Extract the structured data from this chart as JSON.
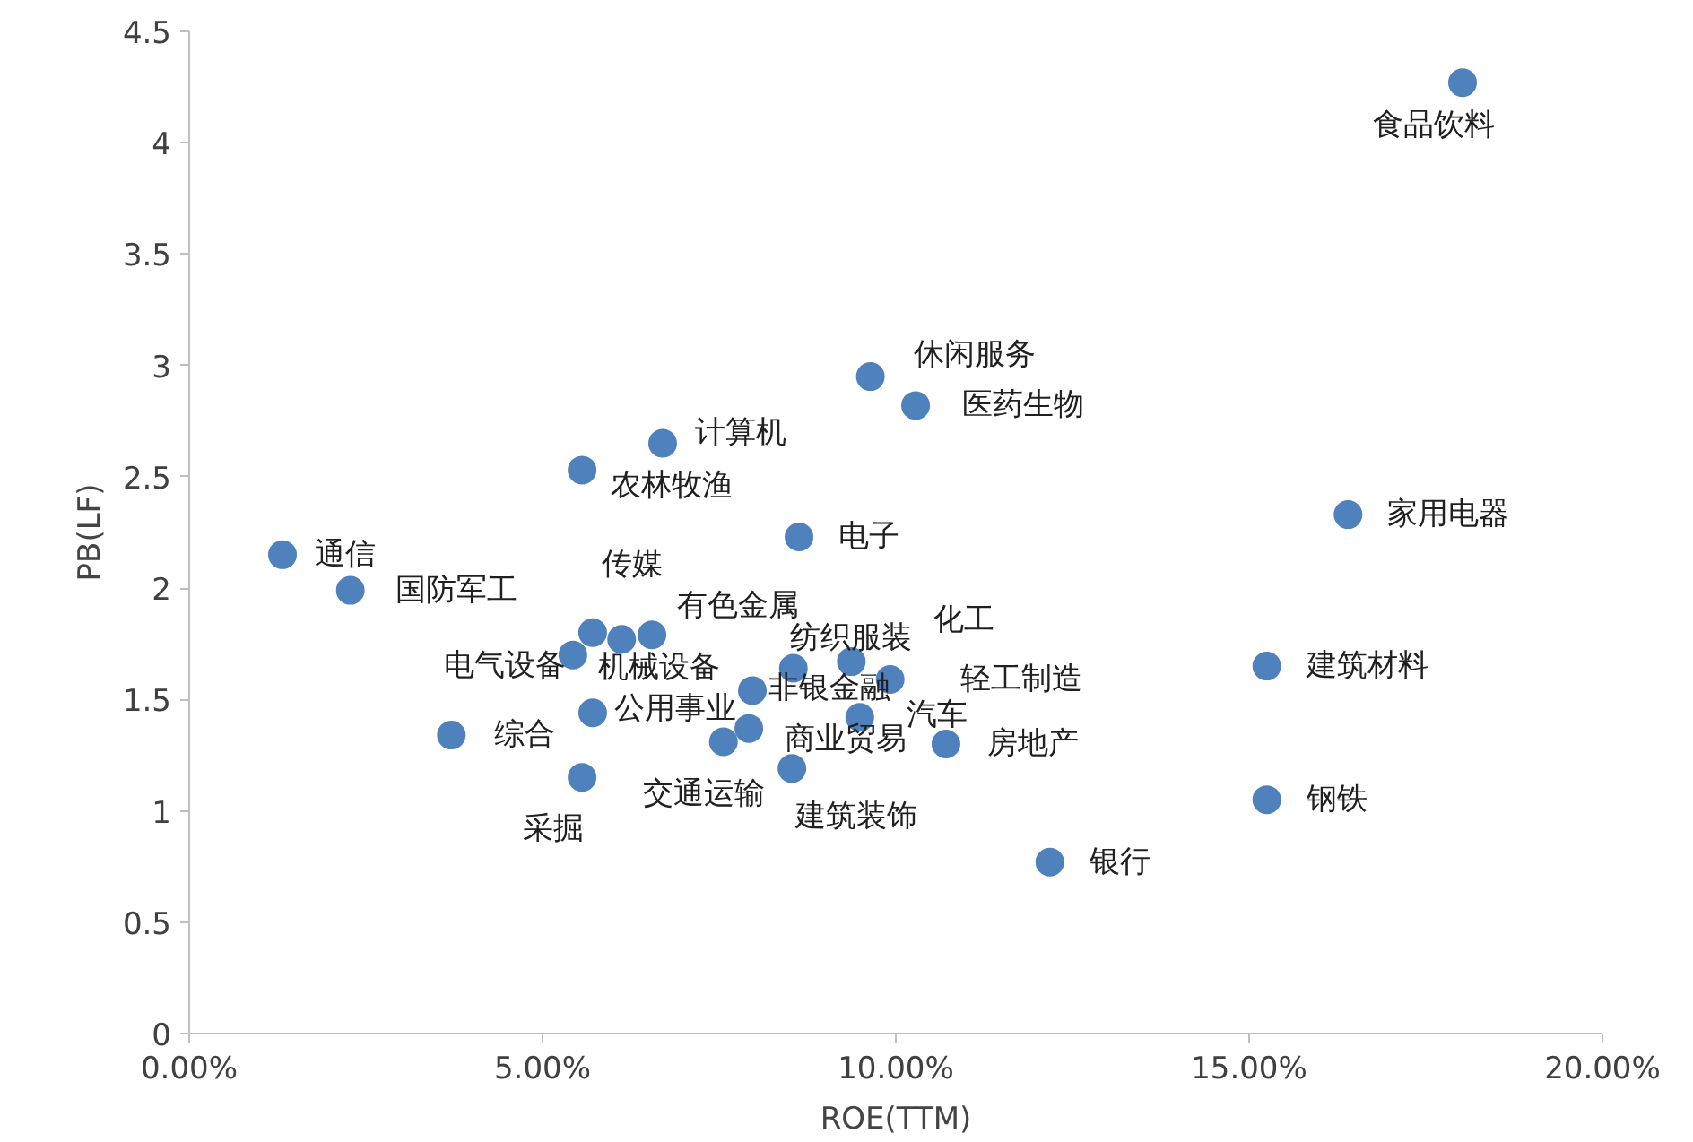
{
  "chart_data": {
    "type": "scatter",
    "xlabel": "ROE(TTM)",
    "ylabel": "PB(LF)",
    "marker": "circle",
    "xlim": [
      0,
      20
    ],
    "ylim": [
      0,
      4.5
    ],
    "xticks": [
      {
        "value": 0,
        "label": "0.00%"
      },
      {
        "value": 5,
        "label": "5.00%"
      },
      {
        "value": 10,
        "label": "10.00%"
      },
      {
        "value": 15,
        "label": "15.00%"
      },
      {
        "value": 20,
        "label": "20.00%"
      }
    ],
    "yticks": [
      0,
      0.5,
      1,
      1.5,
      2,
      2.5,
      3,
      3.5,
      4,
      4.5
    ],
    "series": [
      {
        "color": "#4f81bd",
        "x": [
          18.02,
          9.64,
          10.28,
          6.7,
          5.56,
          16.4,
          8.63,
          1.32,
          2.28,
          5.71,
          6.55,
          5.43,
          6.12,
          5.71,
          5.56,
          7.56,
          7.92,
          7.97,
          8.55,
          9.37,
          9.92,
          9.49,
          10.71,
          8.53,
          3.71,
          15.25,
          15.25,
          12.18
        ],
        "values": [
          4.27,
          2.95,
          2.82,
          2.65,
          2.53,
          2.33,
          2.23,
          2.15,
          1.99,
          1.8,
          1.79,
          1.7,
          1.77,
          1.44,
          1.15,
          1.31,
          1.37,
          1.54,
          1.64,
          1.67,
          1.59,
          1.42,
          1.3,
          1.19,
          1.34,
          1.65,
          1.05,
          0.77
        ]
      }
    ],
    "annotations": [
      {
        "text": "食品饮料",
        "x": 18.02,
        "y": 4.27
      },
      {
        "text": "休闲服务",
        "x": 9.64,
        "y": 2.95
      },
      {
        "text": "医药生物",
        "x": 10.28,
        "y": 2.82
      },
      {
        "text": "计算机",
        "x": 6.7,
        "y": 2.65
      },
      {
        "text": "农林牧渔",
        "x": 5.56,
        "y": 2.53
      },
      {
        "text": "家用电器",
        "x": 16.4,
        "y": 2.33
      },
      {
        "text": "电子",
        "x": 8.63,
        "y": 2.23
      },
      {
        "text": "通信",
        "x": 1.32,
        "y": 2.15
      },
      {
        "text": "国防军工",
        "x": 2.28,
        "y": 1.99
      },
      {
        "text": "传媒",
        "x": 5.71,
        "y": 1.8
      },
      {
        "text": "有色金属",
        "x": 6.55,
        "y": 1.79
      },
      {
        "text": "电气设备",
        "x": 5.43,
        "y": 1.7
      },
      {
        "text": "机械设备",
        "x": 6.12,
        "y": 1.77
      },
      {
        "text": "公用事业",
        "x": 5.71,
        "y": 1.44
      },
      {
        "text": "采掘",
        "x": 5.56,
        "y": 1.15
      },
      {
        "text": "交通运输",
        "x": 7.56,
        "y": 1.31
      },
      {
        "text": "商业贸易",
        "x": 7.92,
        "y": 1.37
      },
      {
        "text": "非银金融",
        "x": 7.97,
        "y": 1.54
      },
      {
        "text": "纺织服装",
        "x": 8.55,
        "y": 1.64
      },
      {
        "text": "化工",
        "x": 9.37,
        "y": 1.67
      },
      {
        "text": "轻工制造",
        "x": 9.92,
        "y": 1.59
      },
      {
        "text": "汽车",
        "x": 9.49,
        "y": 1.42
      },
      {
        "text": "房地产",
        "x": 10.71,
        "y": 1.3
      },
      {
        "text": "建筑装饰",
        "x": 8.53,
        "y": 1.19
      },
      {
        "text": "综合",
        "x": 3.71,
        "y": 1.34
      },
      {
        "text": "建筑材料",
        "x": 15.25,
        "y": 1.65
      },
      {
        "text": "钢铁",
        "x": 15.25,
        "y": 1.05
      },
      {
        "text": "银行",
        "x": 12.18,
        "y": 0.77
      }
    ]
  }
}
